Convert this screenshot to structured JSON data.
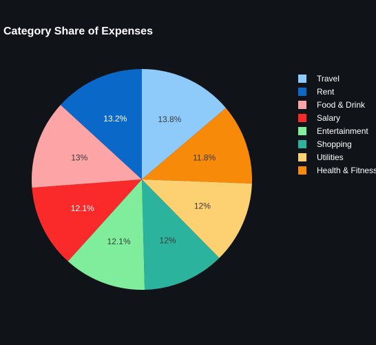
{
  "chart_data": {
    "type": "pie",
    "title": "Category Share of Expenses",
    "legend_position": "right",
    "slices": [
      {
        "label": "Travel",
        "value": 13.8,
        "display": "13.8%",
        "color": "#8ecbfb",
        "text_color": "#3a3a3a"
      },
      {
        "label": "Health & Fitness",
        "value": 11.8,
        "display": "11.8%",
        "color": "#f78a08",
        "text_color": "#3a3a3a"
      },
      {
        "label": "Utilities",
        "value": 12.0,
        "display": "12%",
        "color": "#fdd071",
        "text_color": "#3a3a3a"
      },
      {
        "label": "Shopping",
        "value": 12.0,
        "display": "12%",
        "color": "#2bb39d",
        "text_color": "#3a3a3a"
      },
      {
        "label": "Entertainment",
        "value": 12.1,
        "display": "12.1%",
        "color": "#7fed9c",
        "text_color": "#3a3a3a"
      },
      {
        "label": "Salary",
        "value": 12.1,
        "display": "12.1%",
        "color": "#fb2a2a",
        "text_color": "#ffffff"
      },
      {
        "label": "Food & Drink",
        "value": 13.0,
        "display": "13%",
        "color": "#fca4a6",
        "text_color": "#3a3a3a"
      },
      {
        "label": "Rent",
        "value": 13.2,
        "display": "13.2%",
        "color": "#0a68c9",
        "text_color": "#ffffff"
      }
    ],
    "legend_order": [
      "Travel",
      "Rent",
      "Food & Drink",
      "Salary",
      "Entertainment",
      "Shopping",
      "Utilities",
      "Health & Fitness"
    ]
  }
}
